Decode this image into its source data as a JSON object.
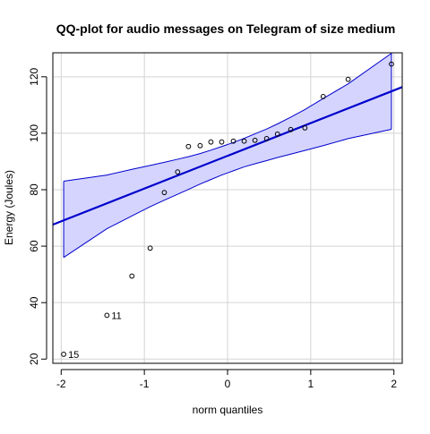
{
  "chart_data": {
    "type": "scatter",
    "title": "QQ-plot for audio messages on Telegram of size medium",
    "xlabel": "norm quantiles",
    "ylabel": "Energy (Joules)",
    "xlim": [
      -2.1,
      2.1
    ],
    "ylim": [
      18.5,
      128.5
    ],
    "x_ticks": [
      -2,
      -1,
      0,
      1,
      2
    ],
    "y_ticks": [
      20,
      40,
      60,
      80,
      100,
      120
    ],
    "grid": true,
    "points": [
      {
        "x": -1.97,
        "y": 21.7,
        "label": "15"
      },
      {
        "x": -1.45,
        "y": 35.5,
        "label": "11"
      },
      {
        "x": -1.15,
        "y": 49.4,
        "label": ""
      },
      {
        "x": -0.93,
        "y": 59.3,
        "label": ""
      },
      {
        "x": -0.76,
        "y": 79.0,
        "label": ""
      },
      {
        "x": -0.6,
        "y": 86.3,
        "label": ""
      },
      {
        "x": -0.47,
        "y": 95.3,
        "label": ""
      },
      {
        "x": -0.33,
        "y": 95.6,
        "label": ""
      },
      {
        "x": -0.2,
        "y": 96.9,
        "label": ""
      },
      {
        "x": -0.07,
        "y": 96.9,
        "label": ""
      },
      {
        "x": 0.07,
        "y": 97.2,
        "label": ""
      },
      {
        "x": 0.2,
        "y": 97.2,
        "label": ""
      },
      {
        "x": 0.33,
        "y": 97.5,
        "label": ""
      },
      {
        "x": 0.47,
        "y": 98.1,
        "label": ""
      },
      {
        "x": 0.6,
        "y": 99.7,
        "label": ""
      },
      {
        "x": 0.76,
        "y": 101.3,
        "label": ""
      },
      {
        "x": 0.93,
        "y": 101.9,
        "label": ""
      },
      {
        "x": 1.15,
        "y": 113.0,
        "label": ""
      },
      {
        "x": 1.45,
        "y": 119.1,
        "label": ""
      },
      {
        "x": 1.97,
        "y": 124.5,
        "label": ""
      }
    ],
    "reference_line": {
      "intercept": 92.0,
      "slope": 11.6
    },
    "confidence_band": {
      "x": [
        -1.97,
        -1.45,
        -1.15,
        -0.93,
        -0.76,
        -0.6,
        -0.47,
        -0.33,
        -0.2,
        -0.07,
        0.07,
        0.2,
        0.33,
        0.47,
        0.6,
        0.76,
        0.93,
        1.15,
        1.45,
        1.97
      ],
      "upper": [
        83.0,
        85.2,
        87.2,
        88.6,
        89.7,
        90.8,
        91.7,
        92.8,
        94.0,
        95.3,
        96.7,
        98.2,
        99.8,
        101.5,
        103.3,
        105.7,
        108.4,
        112.3,
        117.5,
        128.3
      ],
      "lower": [
        56.0,
        66.2,
        70.7,
        74.0,
        76.3,
        78.4,
        80.1,
        82.0,
        83.6,
        85.2,
        86.7,
        88.1,
        89.2,
        90.3,
        91.4,
        92.6,
        93.9,
        95.6,
        98.1,
        101.4
      ]
    },
    "colors": {
      "band_fill": "#d4d4ff",
      "band_edge": "#0000cc",
      "line": "#0000cc",
      "points": "#000000",
      "grid": "#d3d3d3"
    }
  }
}
